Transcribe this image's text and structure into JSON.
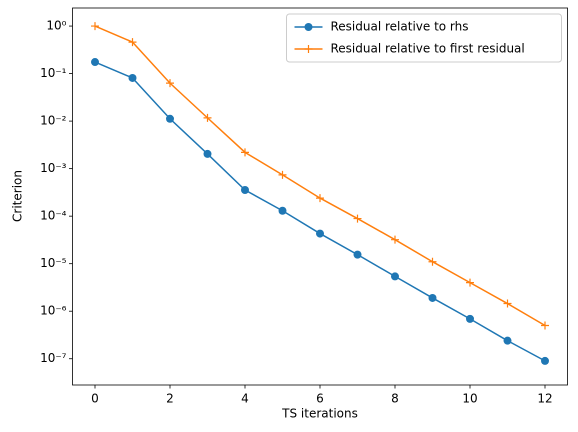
{
  "chart_data": {
    "type": "line",
    "xlabel": "TS iterations",
    "ylabel": "Criterion",
    "x": [
      0,
      1,
      2,
      3,
      4,
      5,
      6,
      7,
      8,
      9,
      10,
      11,
      12
    ],
    "series": [
      {
        "name": "Residual relative to rhs",
        "color": "#1f77b4",
        "marker": "o",
        "values": [
          0.175,
          0.081,
          0.0112,
          0.00204,
          0.000355,
          0.00013,
          4.3e-05,
          1.55e-05,
          5.4e-06,
          1.9e-06,
          6.9e-07,
          2.4e-07,
          9e-08
        ]
      },
      {
        "name": "Residual relative to first residual",
        "color": "#ff7f0e",
        "marker": "+",
        "values": [
          1,
          0.46,
          0.063,
          0.0117,
          0.0022,
          0.00074,
          0.00024,
          8.9e-05,
          3.2e-05,
          1.1e-05,
          4e-06,
          1.45e-06,
          5e-07
        ]
      }
    ],
    "xlim": [
      -0.6,
      12.6
    ],
    "xticks": [
      0,
      2,
      4,
      6,
      8,
      10,
      12
    ],
    "ylim": [
      2.8e-08,
      2.4
    ],
    "log_y": true,
    "yticks": [
      {
        "value": 1,
        "label": "10⁰"
      },
      {
        "value": 0.1,
        "label": "10⁻¹"
      },
      {
        "value": 0.01,
        "label": "10⁻²"
      },
      {
        "value": 0.001,
        "label": "10⁻³"
      },
      {
        "value": 0.0001,
        "label": "10⁻⁴"
      },
      {
        "value": 1e-05,
        "label": "10⁻⁵"
      },
      {
        "value": 1e-06,
        "label": "10⁻⁶"
      },
      {
        "value": 1e-07,
        "label": "10⁻⁷"
      }
    ],
    "legend": "upper right",
    "grid": false
  }
}
